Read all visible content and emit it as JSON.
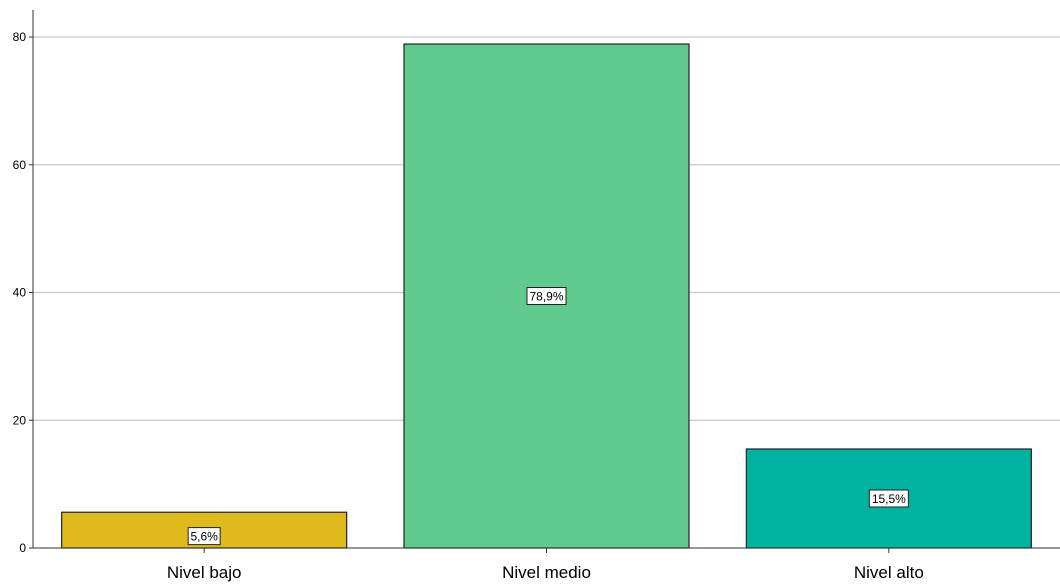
{
  "chart_data": {
    "type": "bar",
    "categories": [
      "Nivel bajo",
      "Nivel medio",
      "Nivel alto"
    ],
    "values": [
      5.6,
      78.9,
      15.5
    ],
    "data_labels": [
      "5,6%",
      "78,9%",
      "15,5%"
    ],
    "colors": [
      "#deba1d",
      "#5fca8b",
      "#00b39f"
    ],
    "ylim": [
      0,
      80
    ],
    "yticks": [
      0,
      20,
      40,
      60,
      80
    ],
    "ytick_labels": [
      "0",
      "20",
      "40",
      "60",
      "80"
    ],
    "grid": true,
    "title": "",
    "xlabel": "",
    "ylabel": ""
  }
}
